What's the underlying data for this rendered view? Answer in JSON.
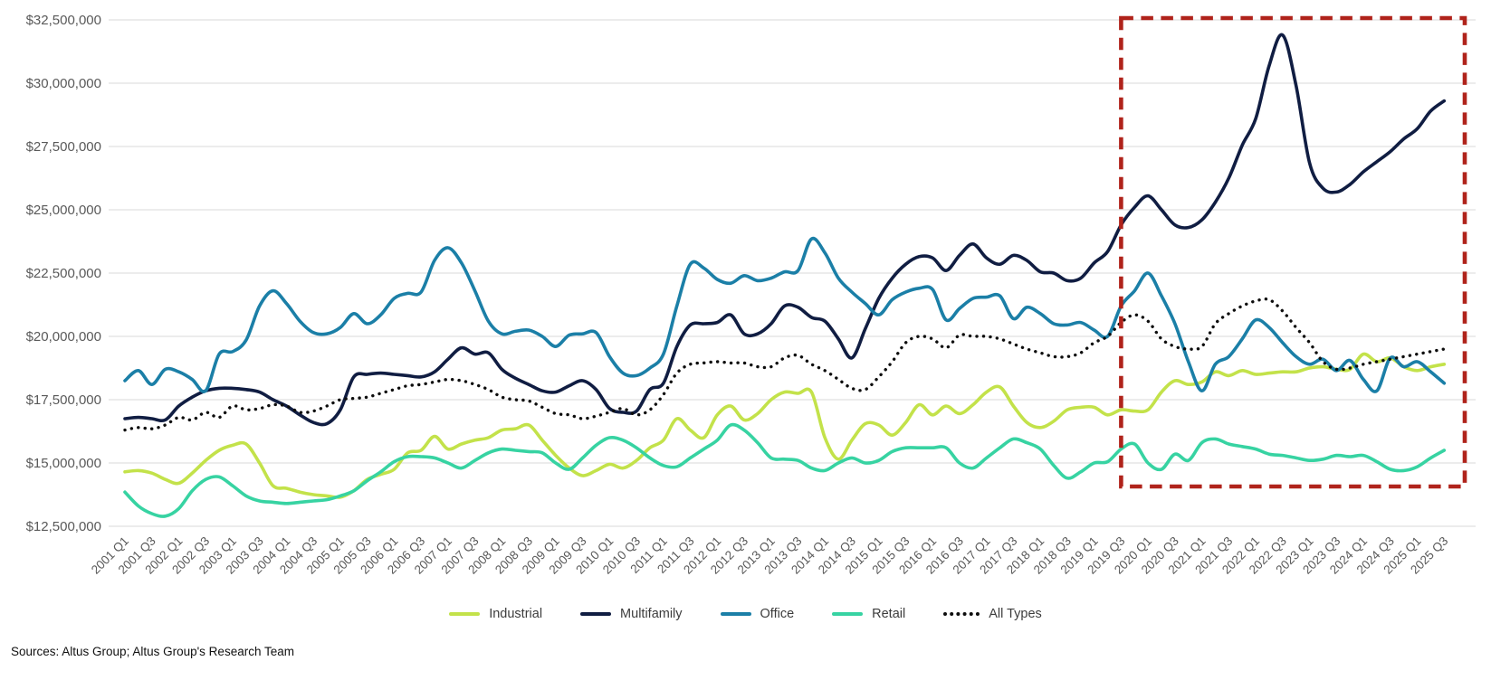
{
  "footer": {
    "source_text": "Sources: Altus Group; Altus Group's Research Team"
  },
  "chart_data": {
    "type": "line",
    "title": "",
    "xlabel": "",
    "ylabel": "",
    "grid": true,
    "legend_position": "bottom-center",
    "unit": "USD, values in millions",
    "frequency": "quarterly",
    "x_start": "2001 Q1",
    "x_end": "2025 Q3",
    "x_labels": [
      "2001 Q1",
      "2001 Q3",
      "2002 Q1",
      "2002 Q3",
      "2003 Q1",
      "2003 Q3",
      "2004 Q1",
      "2004 Q3",
      "2005 Q1",
      "2005 Q3",
      "2006 Q1",
      "2006 Q3",
      "2007 Q1",
      "2007 Q3",
      "2008 Q1",
      "2008 Q3",
      "2009 Q1",
      "2009 Q3",
      "2010 Q1",
      "2010 Q3",
      "2011 Q1",
      "2011 Q3",
      "2012 Q1",
      "2012 Q3",
      "2013 Q1",
      "2013 Q3",
      "2014 Q1",
      "2014 Q3",
      "2015 Q1",
      "2015 Q3",
      "2016 Q1",
      "2016 Q3",
      "2017 Q1",
      "2017 Q3",
      "2018 Q1",
      "2018 Q3",
      "2019 Q1",
      "2019 Q3",
      "2020 Q1",
      "2020 Q3",
      "2021 Q1",
      "2021 Q3",
      "2022 Q1",
      "2022 Q3",
      "2023 Q1",
      "2023 Q3",
      "2024 Q1",
      "2024 Q3",
      "2025 Q1",
      "2025 Q3"
    ],
    "y_axis": {
      "min_millions": 12.5,
      "max_millions": 32.5,
      "ticks": [
        {
          "label": "$12,500,000",
          "value": 12.5
        },
        {
          "label": "$15,000,000",
          "value": 15
        },
        {
          "label": "$17,500,000",
          "value": 17.5
        },
        {
          "label": "$20,000,000",
          "value": 20
        },
        {
          "label": "$22,500,000",
          "value": 22.5
        },
        {
          "label": "$25,000,000",
          "value": 25
        },
        {
          "label": "$27,500,000",
          "value": 27.5
        },
        {
          "label": "$30,000,000",
          "value": 30
        },
        {
          "label": "$32,500,000",
          "value": 32.5
        }
      ]
    },
    "series": [
      {
        "name": "Industrial",
        "color": "#c3e24a",
        "style": "solid",
        "values_millions": [
          14.65,
          14.7,
          14.6,
          14.35,
          14.2,
          14.6,
          15.1,
          15.5,
          15.7,
          15.75,
          15.0,
          14.1,
          14.0,
          13.85,
          13.75,
          13.7,
          13.65,
          13.9,
          14.35,
          14.55,
          14.75,
          15.4,
          15.5,
          16.05,
          15.55,
          15.75,
          15.9,
          16.0,
          16.3,
          16.35,
          16.5,
          15.9,
          15.3,
          14.8,
          14.5,
          14.7,
          14.95,
          14.8,
          15.1,
          15.6,
          15.9,
          16.75,
          16.3,
          16.0,
          16.9,
          17.25,
          16.7,
          16.95,
          17.5,
          17.8,
          17.75,
          17.8,
          16.0,
          15.15,
          15.9,
          16.55,
          16.5,
          16.1,
          16.6,
          17.3,
          16.9,
          17.25,
          16.95,
          17.3,
          17.8,
          18.0,
          17.25,
          16.6,
          16.4,
          16.65,
          17.1,
          17.2,
          17.2,
          16.9,
          17.1,
          17.05,
          17.1,
          17.8,
          18.25,
          18.1,
          18.2,
          18.6,
          18.45,
          18.65,
          18.5,
          18.55,
          18.6,
          18.6,
          18.75,
          18.8,
          18.7,
          18.7,
          19.3,
          19.0,
          19.15,
          18.8,
          18.65,
          18.8,
          18.9
        ]
      },
      {
        "name": "Multifamily",
        "color": "#101d42",
        "style": "solid",
        "values_millions": [
          16.75,
          16.8,
          16.75,
          16.7,
          17.25,
          17.6,
          17.85,
          17.95,
          17.95,
          17.9,
          17.8,
          17.5,
          17.25,
          16.9,
          16.6,
          16.55,
          17.1,
          18.4,
          18.5,
          18.55,
          18.5,
          18.45,
          18.4,
          18.6,
          19.1,
          19.55,
          19.3,
          19.35,
          18.7,
          18.35,
          18.1,
          17.85,
          17.8,
          18.05,
          18.25,
          17.9,
          17.15,
          17.0,
          17.05,
          17.9,
          18.15,
          19.6,
          20.45,
          20.5,
          20.55,
          20.85,
          20.1,
          20.1,
          20.5,
          21.2,
          21.15,
          20.75,
          20.6,
          19.9,
          19.15,
          20.3,
          21.5,
          22.3,
          22.85,
          23.15,
          23.1,
          22.6,
          23.2,
          23.65,
          23.1,
          22.85,
          23.2,
          23.0,
          22.55,
          22.5,
          22.2,
          22.3,
          22.9,
          23.35,
          24.4,
          25.1,
          25.55,
          25.0,
          24.4,
          24.3,
          24.6,
          25.3,
          26.25,
          27.55,
          28.6,
          30.7,
          31.9,
          29.9,
          26.85,
          25.85,
          25.7,
          26.0,
          26.5,
          26.9,
          27.3,
          27.8,
          28.2,
          28.9,
          29.3
        ]
      },
      {
        "name": "Office",
        "color": "#1b7fa7",
        "style": "solid",
        "values_millions": [
          18.25,
          18.65,
          18.1,
          18.7,
          18.6,
          18.3,
          17.85,
          19.3,
          19.4,
          19.85,
          21.2,
          21.8,
          21.3,
          20.6,
          20.15,
          20.1,
          20.35,
          20.9,
          20.5,
          20.85,
          21.5,
          21.7,
          21.75,
          23.0,
          23.5,
          22.9,
          21.8,
          20.6,
          20.1,
          20.2,
          20.25,
          20.0,
          19.6,
          20.05,
          20.1,
          20.15,
          19.2,
          18.55,
          18.45,
          18.75,
          19.3,
          21.2,
          22.85,
          22.7,
          22.25,
          22.1,
          22.4,
          22.2,
          22.3,
          22.55,
          22.6,
          23.85,
          23.3,
          22.3,
          21.75,
          21.3,
          20.85,
          21.45,
          21.75,
          21.9,
          21.85,
          20.65,
          21.1,
          21.5,
          21.55,
          21.6,
          20.7,
          21.15,
          20.9,
          20.5,
          20.45,
          20.55,
          20.25,
          20.0,
          21.2,
          21.8,
          22.5,
          21.6,
          20.5,
          19.0,
          17.85,
          18.9,
          19.2,
          19.9,
          20.65,
          20.35,
          19.75,
          19.2,
          18.9,
          19.1,
          18.65,
          19.05,
          18.3,
          17.85,
          19.15,
          18.8,
          19.0,
          18.6,
          18.15
        ]
      },
      {
        "name": "Retail",
        "color": "#37d3a2",
        "style": "solid",
        "values_millions": [
          13.85,
          13.3,
          13.0,
          12.9,
          13.2,
          13.9,
          14.35,
          14.45,
          14.1,
          13.7,
          13.5,
          13.45,
          13.4,
          13.45,
          13.5,
          13.55,
          13.7,
          13.9,
          14.3,
          14.65,
          15.05,
          15.25,
          15.25,
          15.2,
          15.0,
          14.8,
          15.1,
          15.4,
          15.55,
          15.5,
          15.45,
          15.4,
          15.0,
          14.75,
          15.2,
          15.7,
          16.0,
          15.9,
          15.6,
          15.2,
          14.9,
          14.85,
          15.2,
          15.55,
          15.9,
          16.5,
          16.3,
          15.8,
          15.2,
          15.15,
          15.1,
          14.8,
          14.7,
          15.0,
          15.2,
          15.0,
          15.1,
          15.45,
          15.6,
          15.6,
          15.6,
          15.6,
          15.0,
          14.8,
          15.2,
          15.6,
          15.95,
          15.8,
          15.55,
          14.9,
          14.4,
          14.65,
          15.0,
          15.05,
          15.55,
          15.75,
          15.0,
          14.75,
          15.35,
          15.1,
          15.8,
          15.95,
          15.75,
          15.65,
          15.55,
          15.35,
          15.3,
          15.2,
          15.1,
          15.15,
          15.3,
          15.25,
          15.3,
          15.05,
          14.75,
          14.7,
          14.85,
          15.2,
          15.5
        ]
      },
      {
        "name": "All Types",
        "color": "#0d0d0d",
        "style": "dotted",
        "values_millions": [
          16.3,
          16.4,
          16.35,
          16.5,
          16.8,
          16.7,
          17.0,
          16.8,
          17.25,
          17.1,
          17.15,
          17.3,
          17.25,
          17.0,
          17.05,
          17.25,
          17.5,
          17.55,
          17.6,
          17.75,
          17.9,
          18.05,
          18.1,
          18.2,
          18.3,
          18.25,
          18.1,
          17.9,
          17.6,
          17.5,
          17.45,
          17.2,
          16.95,
          16.9,
          16.75,
          16.85,
          17.0,
          17.15,
          16.9,
          17.1,
          17.7,
          18.55,
          18.9,
          18.95,
          19.0,
          18.95,
          18.95,
          18.8,
          18.8,
          19.15,
          19.25,
          18.9,
          18.65,
          18.3,
          17.95,
          17.9,
          18.4,
          19.0,
          19.75,
          20.0,
          19.9,
          19.55,
          20.05,
          20.0,
          20.0,
          19.9,
          19.7,
          19.5,
          19.35,
          19.2,
          19.2,
          19.35,
          19.75,
          20.0,
          20.55,
          20.85,
          20.6,
          19.9,
          19.6,
          19.5,
          19.6,
          20.5,
          20.9,
          21.2,
          21.4,
          21.45,
          21.0,
          20.35,
          19.75,
          19.0,
          18.7,
          18.75,
          18.9,
          19.0,
          19.1,
          19.2,
          19.3,
          19.4,
          19.5
        ]
      }
    ],
    "annotation_box": {
      "from_label": "2019 Q3",
      "to": "end-of-chart",
      "color": "#b0231b",
      "style": "dashed"
    },
    "colors": {
      "gridline": "#d9d9d9",
      "axis_text": "#595959",
      "legend_text": "#3c3c3c",
      "background": "#ffffff"
    }
  }
}
